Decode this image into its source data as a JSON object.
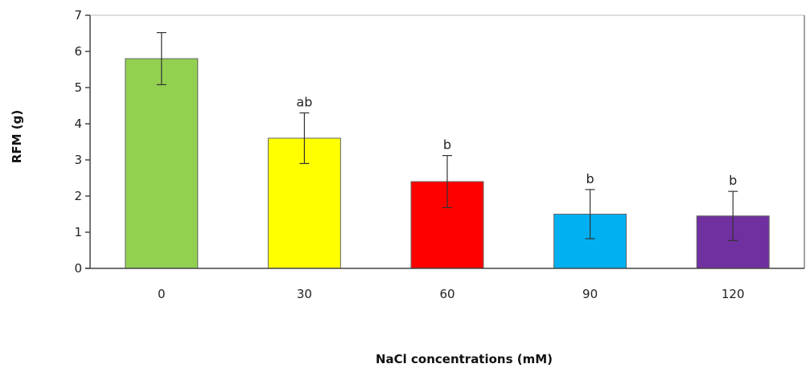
{
  "chart_data": {
    "type": "bar",
    "categories": [
      "0",
      "30",
      "60",
      "90",
      "120"
    ],
    "values": [
      5.8,
      3.6,
      2.4,
      1.5,
      1.45
    ],
    "errors": [
      0.72,
      0.7,
      0.72,
      0.68,
      0.68
    ],
    "significance": [
      "",
      "ab",
      "b",
      "b",
      "b"
    ],
    "colors": [
      "#92d050",
      "#ffff00",
      "#ff0000",
      "#00b0f0",
      "#7030a0"
    ],
    "xlabel": "NaCl concentrations (mM)",
    "ylabel": "RFM (g)",
    "ylim": [
      0,
      7
    ],
    "yticks": [
      "0",
      "1",
      "2",
      "3",
      "4",
      "5",
      "6",
      "7"
    ],
    "grid": false
  }
}
